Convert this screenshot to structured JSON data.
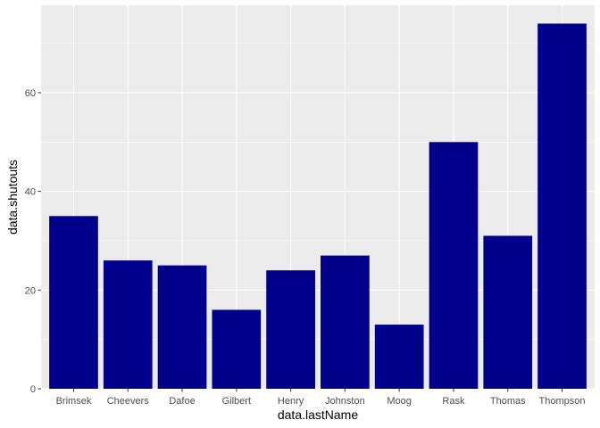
{
  "chart_data": {
    "type": "bar",
    "title": "",
    "xlabel": "data.lastName",
    "ylabel": "data.shutouts",
    "categories": [
      "Brimsek",
      "Cheevers",
      "Dafoe",
      "Gilbert",
      "Henry",
      "Johnston",
      "Moog",
      "Rask",
      "Thomas",
      "Thompson"
    ],
    "values": [
      35,
      26,
      25,
      16,
      24,
      27,
      13,
      50,
      31,
      74
    ],
    "ylim": [
      0,
      77.7
    ],
    "yticks": [
      0,
      20,
      40,
      60
    ],
    "grid": true,
    "legend": "none",
    "colors": {
      "bar": "#00008B",
      "panel": "#EBEBEB",
      "grid_major": "#FFFFFF",
      "tick_text": "#4D4D4D",
      "tick_mark": "#333333"
    }
  }
}
